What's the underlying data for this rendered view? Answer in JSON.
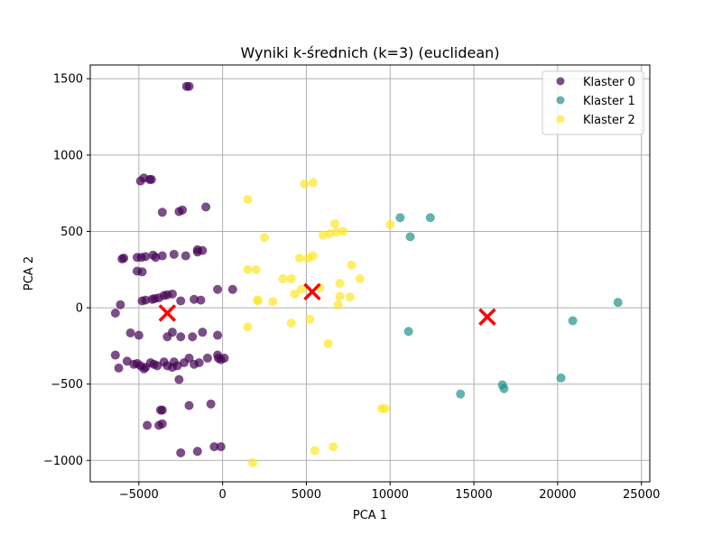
{
  "chart_data": {
    "type": "scatter",
    "title": "Wyniki k-średnich (k=3) (euclidean)",
    "xlabel": "PCA 1",
    "ylabel": "PCA 2",
    "xlim": [
      -7900,
      25500
    ],
    "ylim": [
      -1140,
      1590
    ],
    "xticks": [
      -5000,
      0,
      5000,
      10000,
      15000,
      20000,
      25000
    ],
    "xtick_labels": [
      "−5000",
      "0",
      "5000",
      "10000",
      "15000",
      "20000",
      "25000"
    ],
    "yticks": [
      -1000,
      -500,
      0,
      500,
      1000,
      1500
    ],
    "ytick_labels": [
      "−1000",
      "−500",
      "0",
      "500",
      "1000",
      "1500"
    ],
    "grid": true,
    "legend_position": "top-right",
    "series": [
      {
        "name": "Klaster 0",
        "color": "#440154",
        "points": [
          [
            -2150,
            1450
          ],
          [
            -2000,
            1450
          ],
          [
            -4700,
            850
          ],
          [
            -4900,
            830
          ],
          [
            -4350,
            840
          ],
          [
            -4250,
            840
          ],
          [
            -3600,
            625
          ],
          [
            -2600,
            630
          ],
          [
            -2400,
            640
          ],
          [
            -1000,
            660
          ],
          [
            -6000,
            320
          ],
          [
            -5900,
            325
          ],
          [
            -5100,
            330
          ],
          [
            -4850,
            330
          ],
          [
            -4600,
            335
          ],
          [
            -4150,
            345
          ],
          [
            -4000,
            330
          ],
          [
            -3600,
            340
          ],
          [
            -2900,
            350
          ],
          [
            -2200,
            340
          ],
          [
            -1500,
            380
          ],
          [
            -1500,
            365
          ],
          [
            -1200,
            375
          ],
          [
            -5100,
            240
          ],
          [
            -4800,
            235
          ],
          [
            -6100,
            20
          ],
          [
            -4800,
            45
          ],
          [
            -4600,
            50
          ],
          [
            -4200,
            55
          ],
          [
            -4050,
            60
          ],
          [
            -3800,
            65
          ],
          [
            -3500,
            80
          ],
          [
            -3300,
            85
          ],
          [
            -3000,
            90
          ],
          [
            -2500,
            45
          ],
          [
            -1700,
            55
          ],
          [
            -1300,
            50
          ],
          [
            -300,
            120
          ],
          [
            600,
            120
          ],
          [
            -6400,
            -35
          ],
          [
            -5500,
            -165
          ],
          [
            -5000,
            -180
          ],
          [
            -3300,
            -190
          ],
          [
            -3000,
            -160
          ],
          [
            -2500,
            -190
          ],
          [
            -1800,
            -190
          ],
          [
            -1200,
            -160
          ],
          [
            -300,
            -180
          ],
          [
            -6400,
            -310
          ],
          [
            -5700,
            -350
          ],
          [
            -5300,
            -370
          ],
          [
            -5100,
            -365
          ],
          [
            -4900,
            -380
          ],
          [
            -4600,
            -390
          ],
          [
            -4300,
            -360
          ],
          [
            -4100,
            -370
          ],
          [
            -3900,
            -380
          ],
          [
            -3500,
            -355
          ],
          [
            -3300,
            -380
          ],
          [
            -2900,
            -355
          ],
          [
            -2700,
            -380
          ],
          [
            -2300,
            -360
          ],
          [
            -2000,
            -330
          ],
          [
            -1700,
            -370
          ],
          [
            -1400,
            -360
          ],
          [
            -900,
            -330
          ],
          [
            -300,
            -310
          ],
          [
            -250,
            -330
          ],
          [
            -100,
            -340
          ],
          [
            100,
            -330
          ],
          [
            -6200,
            -395
          ],
          [
            -4700,
            -400
          ],
          [
            -3000,
            -390
          ],
          [
            -2600,
            -470
          ],
          [
            -3700,
            -670
          ],
          [
            -3600,
            -670
          ],
          [
            -2000,
            -640
          ],
          [
            -700,
            -630
          ],
          [
            -4500,
            -770
          ],
          [
            -3800,
            -770
          ],
          [
            -3600,
            -760
          ],
          [
            -2500,
            -950
          ],
          [
            -1500,
            -940
          ],
          [
            -500,
            -910
          ],
          [
            -100,
            -910
          ]
        ]
      },
      {
        "name": "Klaster 1",
        "color": "#21918c",
        "points": [
          [
            10600,
            590
          ],
          [
            12400,
            590
          ],
          [
            11200,
            465
          ],
          [
            11100,
            -155
          ],
          [
            14200,
            -565
          ],
          [
            16700,
            -505
          ],
          [
            16800,
            -530
          ],
          [
            20200,
            -460
          ],
          [
            20900,
            -85
          ],
          [
            23600,
            35
          ]
        ]
      },
      {
        "name": "Klaster 2",
        "color": "#fde725",
        "points": [
          [
            1500,
            710
          ],
          [
            4900,
            810
          ],
          [
            5400,
            820
          ],
          [
            10000,
            545
          ],
          [
            2500,
            460
          ],
          [
            6000,
            475
          ],
          [
            6400,
            485
          ],
          [
            6700,
            550
          ],
          [
            6800,
            495
          ],
          [
            7200,
            500
          ],
          [
            4600,
            325
          ],
          [
            5100,
            325
          ],
          [
            5400,
            340
          ],
          [
            7700,
            280
          ],
          [
            1500,
            250
          ],
          [
            2000,
            250
          ],
          [
            3600,
            190
          ],
          [
            4100,
            190
          ],
          [
            8200,
            190
          ],
          [
            7000,
            160
          ],
          [
            4700,
            120
          ],
          [
            4300,
            90
          ],
          [
            5800,
            130
          ],
          [
            2100,
            50
          ],
          [
            2100,
            45
          ],
          [
            3000,
            40
          ],
          [
            7000,
            75
          ],
          [
            7600,
            70
          ],
          [
            6900,
            20
          ],
          [
            1500,
            -125
          ],
          [
            4100,
            -100
          ],
          [
            5200,
            -75
          ],
          [
            6300,
            -235
          ],
          [
            9500,
            -660
          ],
          [
            9700,
            -660
          ],
          [
            6600,
            -910
          ],
          [
            5500,
            -935
          ],
          [
            1800,
            -1015
          ]
        ]
      }
    ],
    "centroids": {
      "color": "#ff0000",
      "marker": "x",
      "points": [
        [
          -3300,
          -35
        ],
        [
          5350,
          105
        ],
        [
          15800,
          -60
        ]
      ]
    }
  }
}
